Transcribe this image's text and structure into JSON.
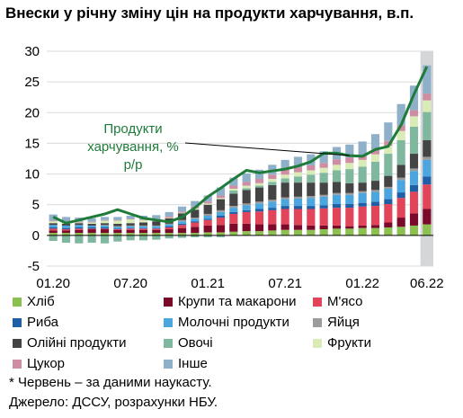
{
  "title": "Внески у річну зміну цін на продукти харчування, в.п.",
  "annotation": "Продукти харчування, % р/р",
  "footnote": "* Червень – за даними наукасту.",
  "source": "Джерело: ДССУ, розрахунки НБУ.",
  "chart_data": {
    "type": "bar",
    "stacked": true,
    "title": "Внески у річну зміну цін на продукти харчування, в.п.",
    "ylim": [
      -5,
      30
    ],
    "yticks": [
      -5,
      0,
      5,
      10,
      15,
      20,
      25,
      30
    ],
    "xtick_labels": [
      "01.20",
      "07.20",
      "01.21",
      "07.21",
      "01.22",
      "06.22"
    ],
    "xtick_indices": [
      0,
      6,
      12,
      18,
      24,
      29
    ],
    "categories": [
      "01.20",
      "02.20",
      "03.20",
      "04.20",
      "05.20",
      "06.20",
      "07.20",
      "08.20",
      "09.20",
      "10.20",
      "11.20",
      "12.20",
      "01.21",
      "02.21",
      "03.21",
      "04.21",
      "05.21",
      "06.21",
      "07.21",
      "08.21",
      "09.21",
      "10.21",
      "11.21",
      "12.21",
      "01.22",
      "02.22",
      "03.22",
      "04.22",
      "05.22",
      "06.22*"
    ],
    "highlight_last": true,
    "series": [
      {
        "name": "Хліб",
        "color": "#8cc152",
        "values": [
          0.4,
          0.4,
          0.4,
          0.4,
          0.4,
          0.4,
          0.4,
          0.4,
          0.4,
          0.4,
          0.4,
          0.4,
          0.5,
          0.5,
          0.6,
          0.7,
          0.7,
          0.8,
          0.9,
          0.9,
          0.9,
          1.0,
          1.1,
          1.1,
          1.2,
          1.2,
          1.3,
          1.4,
          1.6,
          1.8
        ]
      },
      {
        "name": "Крупи та макарони",
        "color": "#7b0a2a",
        "values": [
          0.4,
          0.4,
          0.5,
          0.6,
          0.6,
          0.5,
          0.5,
          0.5,
          0.5,
          0.6,
          0.8,
          1.0,
          1.1,
          1.2,
          1.3,
          1.2,
          1.1,
          1.0,
          0.9,
          0.8,
          0.7,
          0.6,
          0.5,
          0.4,
          0.4,
          0.5,
          0.8,
          1.5,
          2.0,
          2.5
        ]
      },
      {
        "name": "М'ясо",
        "color": "#e2455a",
        "values": [
          0.3,
          0.2,
          0.2,
          0.1,
          0.1,
          0.1,
          0.2,
          0.2,
          0.2,
          0.3,
          0.5,
          0.7,
          0.9,
          1.2,
          1.6,
          1.9,
          2.1,
          2.3,
          2.5,
          2.6,
          2.7,
          2.8,
          2.9,
          3.0,
          3.1,
          3.1,
          3.0,
          3.2,
          3.5,
          4.0
        ]
      },
      {
        "name": "Риба",
        "color": "#1f5fa6",
        "values": [
          0.2,
          0.2,
          0.2,
          0.2,
          0.2,
          0.1,
          0.1,
          0.1,
          0.1,
          0.2,
          0.2,
          0.2,
          0.2,
          0.3,
          0.3,
          0.3,
          0.4,
          0.4,
          0.5,
          0.5,
          0.5,
          0.5,
          0.6,
          0.6,
          0.6,
          0.7,
          0.8,
          0.9,
          1.1,
          1.3
        ]
      },
      {
        "name": "Молочні продукти",
        "color": "#4ba6e0",
        "values": [
          0.4,
          0.4,
          0.4,
          0.3,
          0.3,
          0.3,
          0.3,
          0.3,
          0.3,
          0.3,
          0.4,
          0.4,
          0.5,
          0.6,
          0.7,
          0.8,
          0.9,
          1.0,
          1.1,
          1.2,
          1.3,
          1.4,
          1.5,
          1.5,
          1.6,
          1.6,
          1.7,
          2.0,
          2.3,
          2.7
        ]
      },
      {
        "name": "Яйця",
        "color": "#9b9b9b",
        "values": [
          0.0,
          0.0,
          0.0,
          0.0,
          0.1,
          0.1,
          0.1,
          0.1,
          0.1,
          0.1,
          0.2,
          0.2,
          0.3,
          0.3,
          0.3,
          0.3,
          0.3,
          0.3,
          0.3,
          0.3,
          0.3,
          0.3,
          0.3,
          0.3,
          0.3,
          0.3,
          0.3,
          0.4,
          0.4,
          0.5
        ]
      },
      {
        "name": "Олійні продукти",
        "color": "#444444",
        "values": [
          0.3,
          0.3,
          0.3,
          0.3,
          0.3,
          0.4,
          0.4,
          0.5,
          0.7,
          0.9,
          1.1,
          1.3,
          1.5,
          1.8,
          2.0,
          2.2,
          2.3,
          2.4,
          2.4,
          2.3,
          2.2,
          2.0,
          1.8,
          1.6,
          1.4,
          1.5,
          1.8,
          2.1,
          2.4,
          2.7
        ]
      },
      {
        "name": "Овочі",
        "color": "#7fb89e",
        "values": [
          -0.9,
          -1.2,
          -1.3,
          -1.2,
          -1.3,
          -1.0,
          -0.8,
          -0.8,
          -0.7,
          -0.5,
          -0.4,
          -0.3,
          -0.3,
          -0.3,
          0.5,
          0.3,
          0.3,
          0.5,
          0.7,
          1.0,
          1.3,
          1.6,
          1.9,
          2.3,
          2.6,
          3.1,
          3.6,
          4.0,
          4.4,
          4.6
        ]
      },
      {
        "name": "Фрукти",
        "color": "#d9ecb7",
        "values": [
          0.3,
          0.2,
          0.1,
          0.2,
          0.4,
          0.5,
          0.6,
          0.4,
          0.2,
          0.1,
          0.1,
          0.2,
          0.2,
          0.2,
          0.3,
          0.4,
          0.4,
          0.5,
          0.6,
          0.7,
          0.7,
          0.8,
          0.9,
          1.0,
          1.1,
          1.2,
          1.3,
          1.5,
          1.7,
          1.9
        ]
      },
      {
        "name": "Цукор",
        "color": "#cf8da3",
        "values": [
          0.1,
          0.1,
          0.1,
          0.1,
          0.1,
          0.1,
          0.1,
          0.1,
          0.2,
          0.2,
          0.2,
          0.3,
          0.3,
          0.4,
          0.5,
          0.6,
          0.7,
          0.7,
          0.8,
          0.8,
          0.8,
          0.8,
          0.9,
          0.9,
          0.8,
          0.8,
          0.8,
          0.9,
          1.0,
          1.1
        ]
      },
      {
        "name": "Інше",
        "color": "#8fb0c9",
        "values": [
          1.0,
          0.8,
          0.7,
          0.6,
          0.5,
          0.5,
          0.5,
          0.6,
          0.6,
          0.7,
          0.8,
          0.9,
          1.0,
          1.3,
          1.3,
          1.4,
          1.5,
          1.6,
          1.6,
          1.7,
          1.8,
          1.9,
          2.0,
          2.1,
          2.2,
          2.5,
          3.0,
          3.5,
          4.0,
          4.6
        ]
      }
    ],
    "line": {
      "name": "Продукти харчування, % р/р",
      "color": "#1e7b3a",
      "values": [
        3.0,
        2.0,
        2.5,
        3.0,
        3.5,
        4.2,
        3.5,
        2.8,
        2.5,
        2.2,
        3.0,
        4.5,
        6.3,
        7.7,
        9.2,
        10.6,
        10.2,
        10.5,
        10.8,
        11.3,
        12.0,
        13.4,
        13.4,
        13.0,
        12.9,
        14.0,
        14.5,
        18.0,
        23.0,
        27.5
      ]
    },
    "annotation": "Продукти харчування, % р/р"
  }
}
